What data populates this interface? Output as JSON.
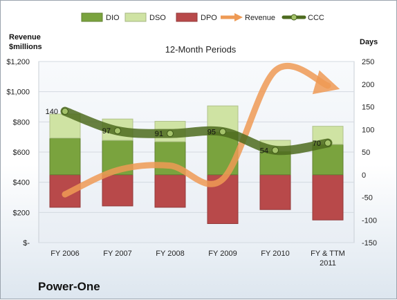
{
  "company": "Power-One",
  "chart_data": {
    "type": "bar",
    "title": "12-Month Periods",
    "left_axis_label": [
      "Revenue",
      "$millions"
    ],
    "right_axis_label": "Days",
    "categories": [
      [
        "FY 2006"
      ],
      [
        "FY 2007"
      ],
      [
        "FY 2008"
      ],
      [
        "FY 2009"
      ],
      [
        "FY 2010"
      ],
      [
        "FY & TTM",
        "2011"
      ]
    ],
    "left_axis": {
      "min": 0,
      "max": 1200,
      "ticks": [
        0,
        200,
        400,
        600,
        800,
        1000,
        1200
      ],
      "tick_labels": [
        "$-",
        "$200",
        "$400",
        "$600",
        "$800",
        "$1,000",
        "$1,200"
      ]
    },
    "right_axis": {
      "min": -150,
      "max": 250,
      "ticks": [
        -150,
        -100,
        -50,
        0,
        50,
        100,
        150,
        200,
        250
      ]
    },
    "legend": [
      "DIO",
      "DSO",
      "DPO",
      "Revenue",
      "CCC"
    ],
    "legend_position": "top",
    "gridlines": true,
    "colors": {
      "DIO": "#7aa33e",
      "DSO": "#cfe3a3",
      "DPO": "#b8494a",
      "Revenue": "#ee9a55",
      "CCC": "#4d6b1f"
    },
    "series": [
      {
        "name": "DIO",
        "axis": "right",
        "values": [
          81,
          76,
          73,
          95,
          52,
          67
        ]
      },
      {
        "name": "DSO",
        "axis": "right",
        "values": [
          53,
          47,
          45,
          57,
          24,
          40
        ]
      },
      {
        "name": "DPO",
        "axis": "right",
        "values": [
          -72,
          -69,
          -72,
          -108,
          -77,
          -100
        ]
      },
      {
        "name": "Revenue",
        "axis": "left",
        "values": [
          320,
          480,
          510,
          420,
          1140,
          1040
        ]
      },
      {
        "name": "CCC",
        "axis": "right",
        "values": [
          140,
          97,
          91,
          95,
          54,
          70
        ],
        "labels": [
          "140",
          "97",
          "91",
          "95",
          "54",
          "70"
        ]
      }
    ]
  }
}
